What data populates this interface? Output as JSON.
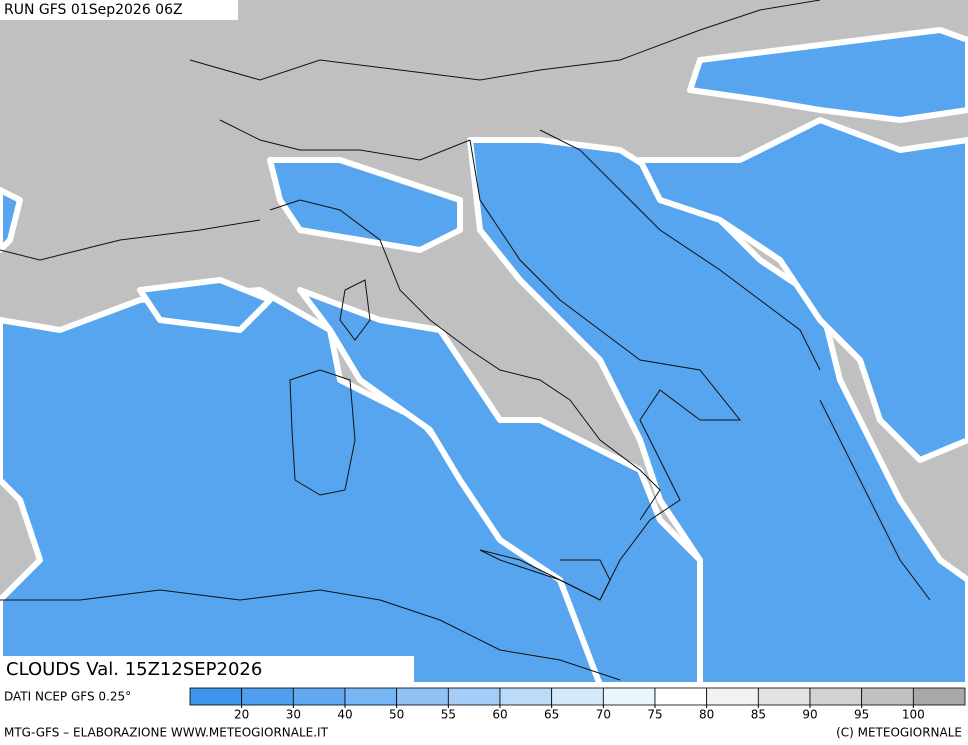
{
  "header": {
    "run": "RUN GFS 01Sep2026 06Z"
  },
  "panel": {
    "title": "CLOUDS Val. 15Z12SEP2026",
    "source": "DATI NCEP GFS 0.25°"
  },
  "legend": {
    "levels": [
      20,
      30,
      40,
      50,
      55,
      60,
      65,
      70,
      75,
      80,
      85,
      90,
      95,
      100
    ],
    "colors": [
      "#3f95ec",
      "#4f9ff0",
      "#62a9f2",
      "#78b5f4",
      "#8ec1f6",
      "#a4cdf7",
      "#bcdbf9",
      "#d4e9fb",
      "#e8f7fd",
      "#ffffff",
      "#f2f2f2",
      "#e2e2e2",
      "#d2d2d2",
      "#c2c2c2",
      "#a8a8a8"
    ]
  },
  "footer": {
    "left": "MTG-GFS – ELABORAZIONE WWW.METEOGIORNALE.IT",
    "right": "(C) METEOGIORNALE"
  }
}
